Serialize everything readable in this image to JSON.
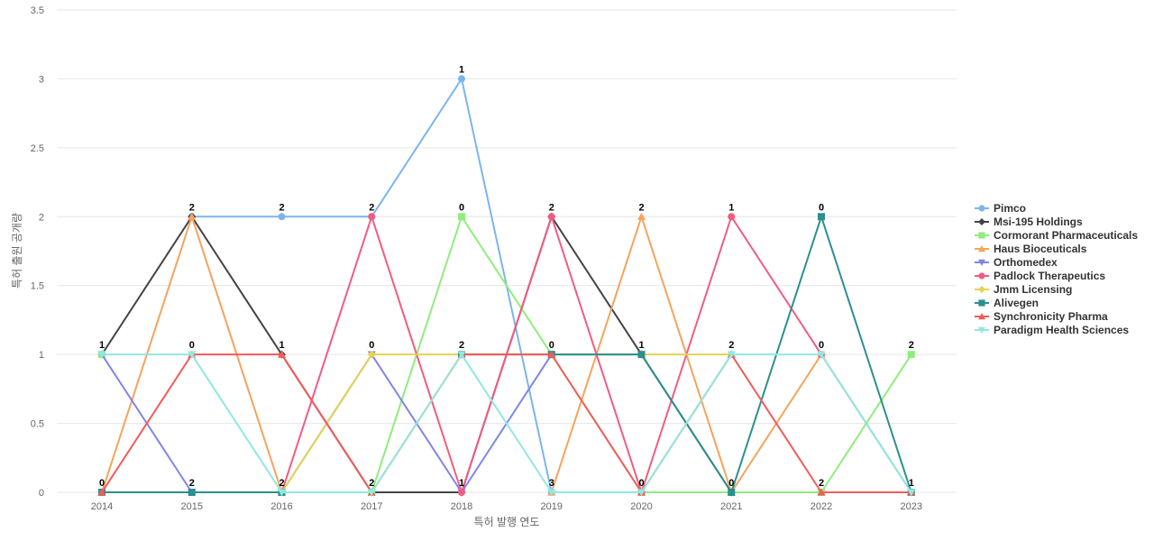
{
  "chart_data": {
    "type": "line",
    "title": "",
    "xlabel": "특허 발행 연도",
    "ylabel": "특허 출원 공개량",
    "x": [
      "2014",
      "2015",
      "2016",
      "2017",
      "2018",
      "2019",
      "2020",
      "2021",
      "2022",
      "2023"
    ],
    "ylim": [
      0,
      3.5
    ],
    "yticks": [
      "0",
      "0.5",
      "1",
      "1.5",
      "2",
      "2.5",
      "3",
      "3.5"
    ],
    "grid": true,
    "legend_position": "right",
    "series": [
      {
        "name": "Pimco",
        "color": "#7cb5ec",
        "marker": "circle",
        "values": [
          null,
          2,
          2,
          2,
          3,
          0,
          null,
          null,
          null,
          null
        ]
      },
      {
        "name": "Msi-195 Holdings",
        "color": "#434348",
        "marker": "diamond",
        "values": [
          1,
          2,
          1,
          0,
          0,
          2,
          1,
          0,
          null,
          null
        ]
      },
      {
        "name": "Cormorant Pharmaceuticals",
        "color": "#90ed7d",
        "marker": "square",
        "values": [
          1,
          null,
          null,
          0,
          2,
          1,
          0,
          0,
          0,
          1
        ]
      },
      {
        "name": "Haus Bioceuticals",
        "color": "#f7a35c",
        "marker": "triangle",
        "values": [
          0,
          2,
          0,
          null,
          null,
          0,
          2,
          0,
          1,
          null
        ]
      },
      {
        "name": "Orthomedex",
        "color": "#8085e9",
        "marker": "triangle-down",
        "values": [
          1,
          0,
          0,
          1,
          0,
          1,
          1,
          null,
          null,
          null
        ]
      },
      {
        "name": "Padlock Therapeutics",
        "color": "#f15c80",
        "marker": "circle",
        "values": [
          null,
          null,
          0,
          2,
          0,
          2,
          0,
          2,
          1,
          0
        ]
      },
      {
        "name": "Jmm Licensing",
        "color": "#e4d354",
        "marker": "diamond",
        "values": [
          null,
          null,
          0,
          1,
          1,
          1,
          1,
          1,
          null,
          null
        ]
      },
      {
        "name": "Alivegen",
        "color": "#2b908f",
        "marker": "square",
        "values": [
          0,
          0,
          0,
          null,
          1,
          1,
          1,
          0,
          2,
          0
        ]
      },
      {
        "name": "Synchronicity Pharma",
        "color": "#f45b5b",
        "marker": "triangle",
        "values": [
          0,
          1,
          1,
          0,
          1,
          1,
          0,
          1,
          0,
          0
        ]
      },
      {
        "name": "Paradigm Health Sciences",
        "color": "#91e8e1",
        "marker": "triangle-down",
        "values": [
          1,
          1,
          0,
          0,
          1,
          0,
          0,
          1,
          1,
          0
        ]
      }
    ],
    "data_labels": [
      "0",
      "1",
      "2",
      "0",
      "2",
      "2",
      "1",
      "2",
      "2",
      "0",
      "2",
      "1",
      "2",
      "0",
      "1",
      "3",
      "0",
      "2",
      "0",
      "1",
      "2",
      "0",
      "2",
      "1",
      "2",
      "0",
      "0",
      "1",
      "2",
      "1",
      "0",
      "1",
      "0",
      "2"
    ]
  }
}
